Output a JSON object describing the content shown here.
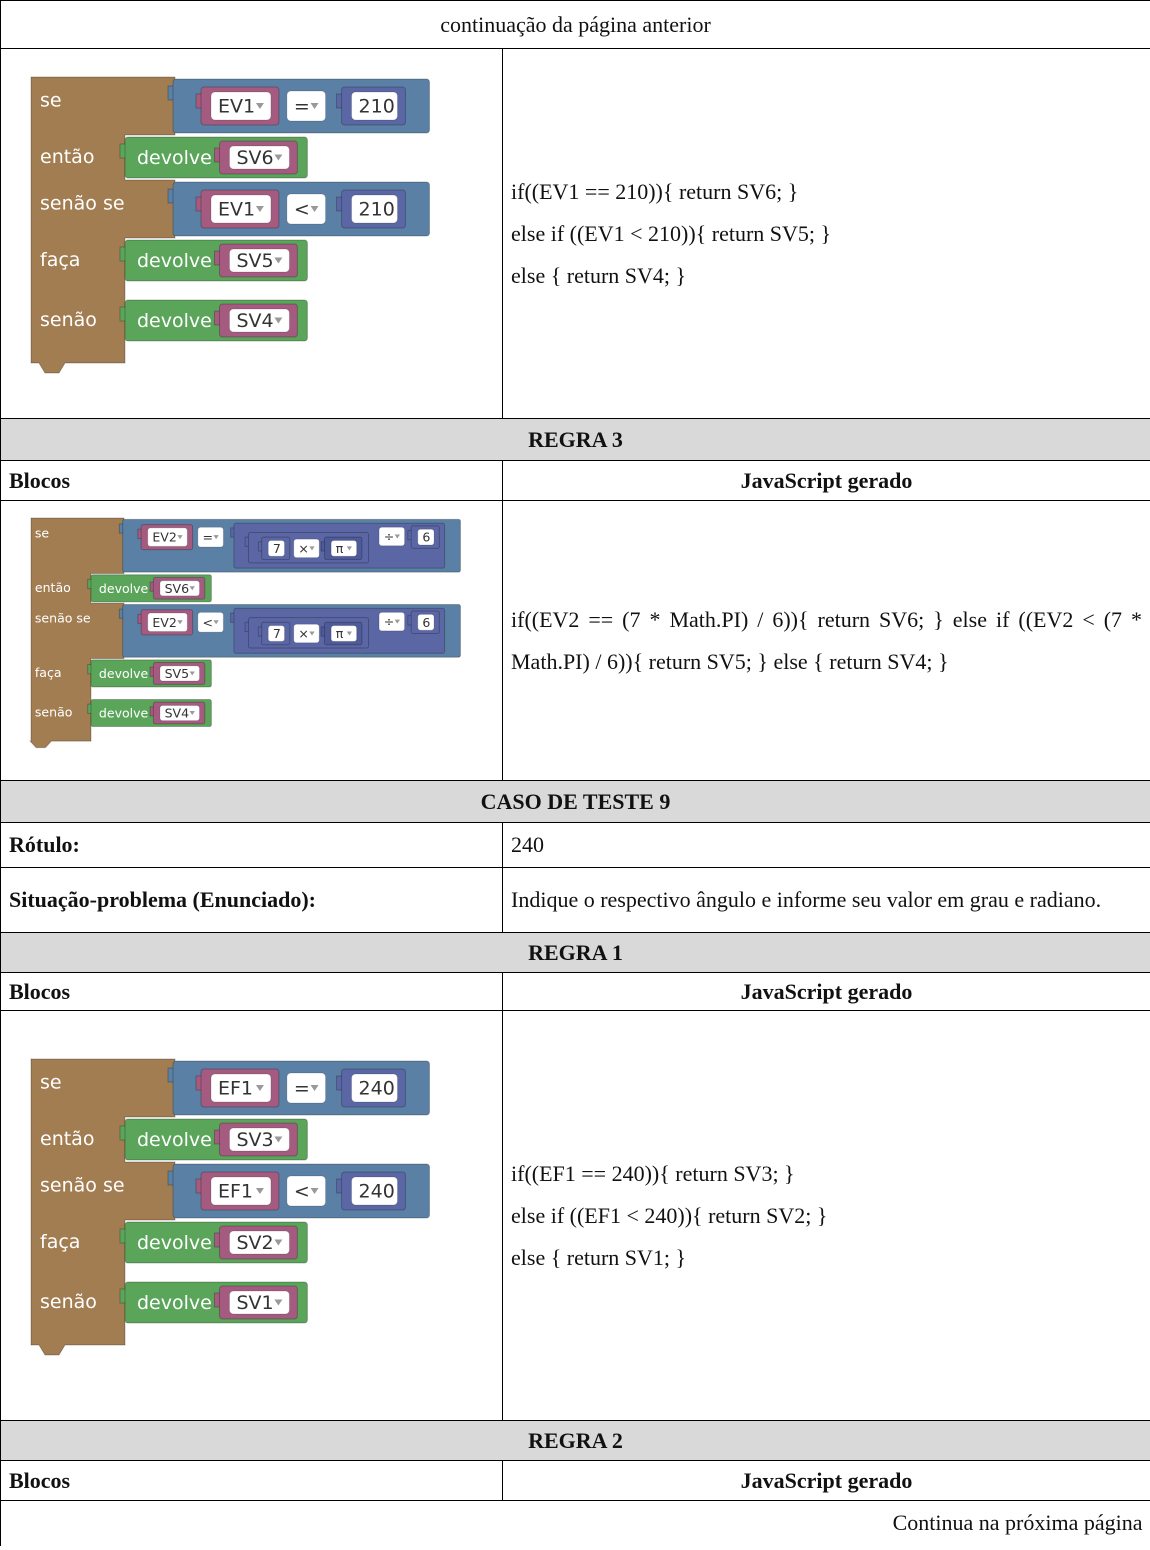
{
  "table": {
    "rows": [
      {
        "kind": "caption",
        "text": "continuação da página anterior"
      },
      {
        "kind": "rule",
        "blocks": {
          "labels": [
            "se",
            "então",
            "senão se",
            "faça",
            "senão"
          ],
          "return_label": "devolve",
          "conditions": [
            {
              "var": "EV1",
              "op": "=",
              "rhs": "210"
            },
            {
              "var": "EV1",
              "op": "<",
              "rhs": "210"
            }
          ],
          "returns": [
            "SV6",
            "SV5",
            "SV4"
          ]
        },
        "code": [
          "if((EV1 == 210)){ return SV6; }",
          "else if ((EV1 < 210)){ return SV5; }",
          "else { return SV4; }"
        ]
      },
      {
        "kind": "section",
        "text": "REGRA 3"
      },
      {
        "kind": "heads",
        "cells": [
          "Blocos",
          "JavaScript gerado"
        ]
      },
      {
        "kind": "rule",
        "blocks": {
          "labels": [
            "se",
            "então",
            "senão se",
            "faça",
            "senão"
          ],
          "return_label": "devolve",
          "conditions": [
            {
              "var": "EV2",
              "op": "=",
              "rhs": {
                "left": [
                  "7",
                  "×",
                  "π"
                ],
                "op": "÷",
                "right": "6"
              }
            },
            {
              "var": "EV2",
              "op": "<",
              "rhs": {
                "left": [
                  "7",
                  "×",
                  "π"
                ],
                "op": "÷",
                "right": "6"
              }
            }
          ],
          "returns": [
            "SV6",
            "SV5",
            "SV4"
          ]
        },
        "code": [
          "if((EV2 == (7 * Math.PI) / 6)){ return SV6; } else if ((EV2 < (7 * Math.PI) / 6)){ return SV5; } else { return SV4; }"
        ]
      },
      {
        "kind": "section",
        "text": "CASO DE TESTE 9"
      },
      {
        "kind": "field",
        "cells": [
          "Rótulo:",
          "240"
        ]
      },
      {
        "kind": "field",
        "cells": [
          "Situação-problema (Enunciado):",
          "Indique o respectivo ângulo e informe seu valor em grau e radiano."
        ]
      },
      {
        "kind": "section",
        "text": "REGRA 1"
      },
      {
        "kind": "heads",
        "cells": [
          "Blocos",
          "JavaScript gerado"
        ]
      },
      {
        "kind": "rule",
        "blocks": {
          "labels": [
            "se",
            "então",
            "senão se",
            "faça",
            "senão"
          ],
          "return_label": "devolve",
          "conditions": [
            {
              "var": "EF1",
              "op": "=",
              "rhs": "240"
            },
            {
              "var": "EF1",
              "op": "<",
              "rhs": "240"
            }
          ],
          "returns": [
            "SV3",
            "SV2",
            "SV1"
          ]
        },
        "code": [
          "if((EF1 == 240)){ return SV3; }",
          "else if ((EF1 < 240)){ return SV2; }",
          "else { return SV1; }"
        ]
      },
      {
        "kind": "section",
        "text": "REGRA 2"
      },
      {
        "kind": "heads",
        "cells": [
          "Blocos",
          "JavaScript gerado"
        ]
      },
      {
        "kind": "footer",
        "text": "Continua na próxima página"
      }
    ]
  }
}
